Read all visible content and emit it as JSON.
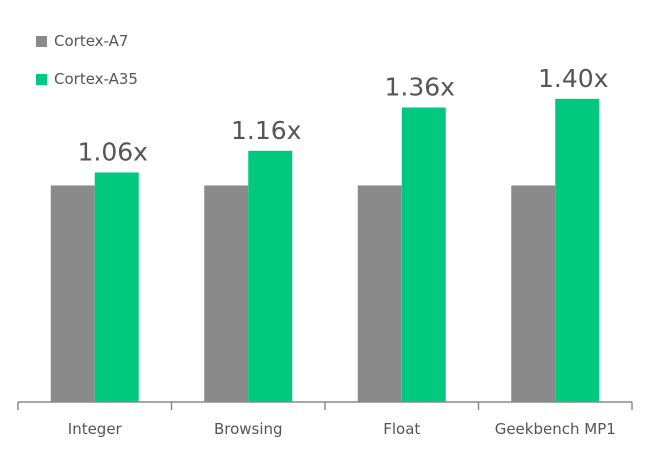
{
  "chart_data": {
    "type": "bar",
    "categories": [
      "Integer",
      "Browsing",
      "Float",
      "Geekbench MP1"
    ],
    "series": [
      {
        "name": "Cortex-A7",
        "color": "#8a8a8a",
        "values": [
          1.0,
          1.0,
          1.0,
          1.0
        ]
      },
      {
        "name": "Cortex-A35",
        "color": "#00c87f",
        "values": [
          1.06,
          1.16,
          1.36,
          1.4
        ]
      }
    ],
    "data_labels": [
      "1.06x",
      "1.16x",
      "1.36x",
      "1.40x"
    ],
    "title": "",
    "xlabel": "",
    "ylabel": "",
    "ylim": [
      0,
      1.45
    ],
    "grid": false,
    "legend_position": "top-left"
  }
}
